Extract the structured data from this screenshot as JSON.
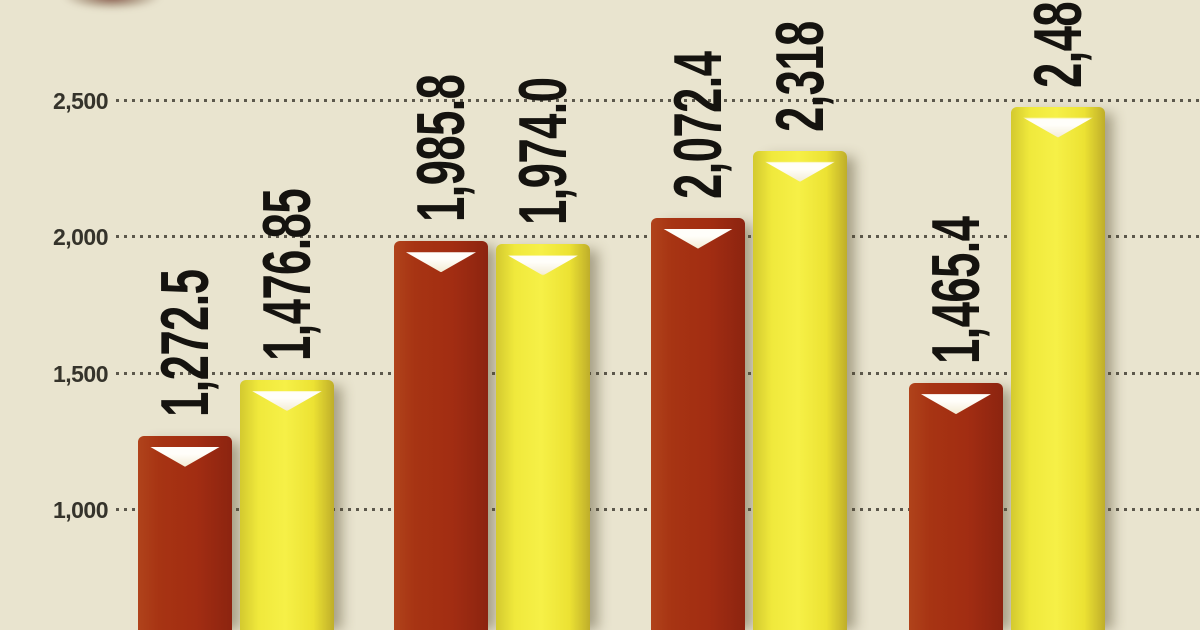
{
  "colors": {
    "background": "#e9e4cf",
    "bar_maroon": "#a22d12",
    "bar_yellow": "#f0e93c",
    "grid_dots": "#48443a",
    "tick_text": "#35332b",
    "value_text": "#15130f",
    "marker": "#ffffff"
  },
  "chart_data": {
    "type": "bar",
    "groups": 4,
    "categories": [
      "",
      "",
      "",
      ""
    ],
    "series": [
      {
        "name": "maroon",
        "color": "#a22d12",
        "points": [
          {
            "label": "1,272.5",
            "value": 1272.5
          },
          {
            "label": "1,985.8",
            "value": 1985.8
          },
          {
            "label": "2,072.4",
            "value": 2072.4
          },
          {
            "label": "1,465.4",
            "value": 1465.4
          }
        ]
      },
      {
        "name": "yellow",
        "color": "#f0e93c",
        "points": [
          {
            "label": "1,476.85",
            "value": 1476.85
          },
          {
            "label": "1,974.0",
            "value": 1974.0
          },
          {
            "label": "2,318",
            "value": 2318,
            "clipped": true
          },
          {
            "label": "2,48",
            "value": 2480,
            "clipped": true
          }
        ]
      }
    ],
    "y_axis": {
      "ticks": [
        {
          "label": "2,500",
          "value": 2500
        },
        {
          "label": "2,000",
          "value": 2000
        },
        {
          "label": "1,500",
          "value": 1500
        },
        {
          "label": "1,000",
          "value": 1000
        }
      ]
    },
    "grid": "dotted-horizontal",
    "legend": "none-visible",
    "marker": "white-down-triangle",
    "layout_hints": {
      "bars_cropped_at_bottom": true,
      "labels_rotated_degrees": -90,
      "visible_value_range": [
        560,
        2870
      ]
    }
  }
}
